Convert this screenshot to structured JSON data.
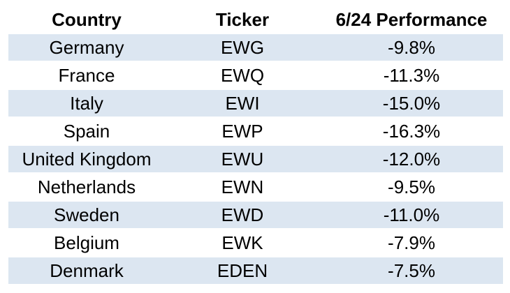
{
  "chart_data": {
    "type": "table",
    "columns": [
      "Country",
      "Ticker",
      "6/24 Performance"
    ],
    "rows": [
      {
        "country": "Germany",
        "ticker": "EWG",
        "performance": "-9.8%",
        "value": -9.8
      },
      {
        "country": "France",
        "ticker": "EWQ",
        "performance": "-11.3%",
        "value": -11.3
      },
      {
        "country": "Italy",
        "ticker": "EWI",
        "performance": "-15.0%",
        "value": -15.0
      },
      {
        "country": "Spain",
        "ticker": "EWP",
        "performance": "-16.3%",
        "value": -16.3
      },
      {
        "country": "United Kingdom",
        "ticker": "EWU",
        "performance": "-12.0%",
        "value": -12.0
      },
      {
        "country": "Netherlands",
        "ticker": "EWN",
        "performance": "-9.5%",
        "value": -9.5
      },
      {
        "country": "Sweden",
        "ticker": "EWD",
        "performance": "-11.0%",
        "value": -11.0
      },
      {
        "country": "Belgium",
        "ticker": "EWK",
        "performance": "-7.9%",
        "value": -7.9
      },
      {
        "country": "Denmark",
        "ticker": "EDEN",
        "performance": "-7.5%",
        "value": -7.5
      }
    ]
  },
  "colors": {
    "row_shading": "#dce6f1",
    "text": "#000000",
    "background": "#ffffff"
  }
}
